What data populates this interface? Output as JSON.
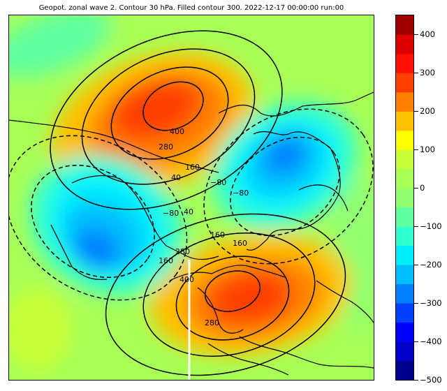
{
  "title": "Geopot. zonal wave 2. Contour 30 hPa. Filled contour 300. 2022-12-17 00:00:00 run:00",
  "colorbar": {
    "vmin": -500,
    "vmax": 450,
    "levels": [
      -500,
      -450,
      -400,
      -350,
      -300,
      -250,
      -200,
      -150,
      -100,
      -50,
      0,
      50,
      100,
      150,
      200,
      250,
      300,
      350,
      400,
      450
    ],
    "colors": [
      "#00008f",
      "#0000c8",
      "#0000ff",
      "#0040ff",
      "#0080ff",
      "#00bfff",
      "#00efff",
      "#30ffd0",
      "#60ffa0",
      "#90ff70",
      "#a8ff58",
      "#c8ff38",
      "#ffff00",
      "#ffc000",
      "#ff8000",
      "#ff4000",
      "#ff1000",
      "#df0000",
      "#a00000"
    ],
    "tick_labels": [
      "400",
      "300",
      "200",
      "100",
      "0",
      "−100",
      "−200",
      "−300",
      "−400",
      "−500"
    ],
    "tick_values": [
      400,
      300,
      200,
      100,
      0,
      -100,
      -200,
      -300,
      -400,
      -500
    ]
  },
  "contour_labels": [
    "40",
    "160",
    "280",
    "400",
    "−80",
    "−80",
    "40",
    "160",
    "280",
    "400",
    "160",
    "280",
    "−80",
    "160"
  ],
  "map": {
    "projection": "north-polar-stereographic",
    "line_color": "#000000",
    "background_field": "#a8ff58"
  }
}
